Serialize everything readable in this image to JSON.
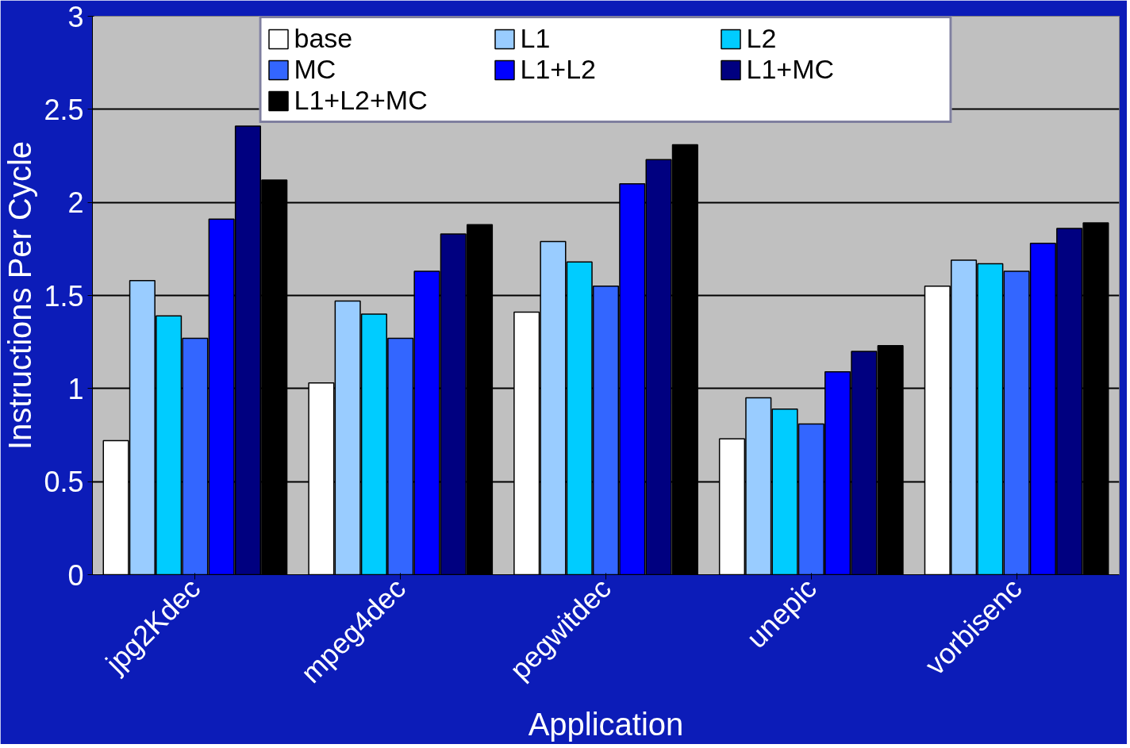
{
  "chart_data": {
    "type": "bar",
    "xlabel": "Application",
    "ylabel": "Instructions Per Cycle",
    "categories": [
      "jpg2Kdec",
      "mpeg4dec",
      "pegwitdec",
      "unepic",
      "vorbisenc"
    ],
    "series": [
      {
        "name": "base",
        "color": "#ffffff",
        "values": [
          0.72,
          1.03,
          1.41,
          0.73,
          1.55
        ]
      },
      {
        "name": "L1",
        "color": "#99ccff",
        "values": [
          1.58,
          1.47,
          1.79,
          0.95,
          1.69
        ]
      },
      {
        "name": "L2",
        "color": "#00ccff",
        "values": [
          1.39,
          1.4,
          1.68,
          0.89,
          1.67
        ]
      },
      {
        "name": "MC",
        "color": "#3366ff",
        "values": [
          1.27,
          1.27,
          1.55,
          0.81,
          1.63
        ]
      },
      {
        "name": "L1+L2",
        "color": "#0000ff",
        "values": [
          1.91,
          1.63,
          2.1,
          1.09,
          1.78
        ]
      },
      {
        "name": "L1+MC",
        "color": "#000080",
        "values": [
          2.41,
          1.83,
          2.23,
          1.2,
          1.86
        ]
      },
      {
        "name": "L1+L2+MC",
        "color": "#000000",
        "values": [
          2.12,
          1.88,
          2.31,
          1.23,
          1.89
        ]
      }
    ],
    "ylim": [
      0,
      3
    ],
    "yticks": [
      0,
      0.5,
      1,
      1.5,
      2,
      2.5,
      3
    ],
    "grid": "y",
    "legend": "top"
  }
}
